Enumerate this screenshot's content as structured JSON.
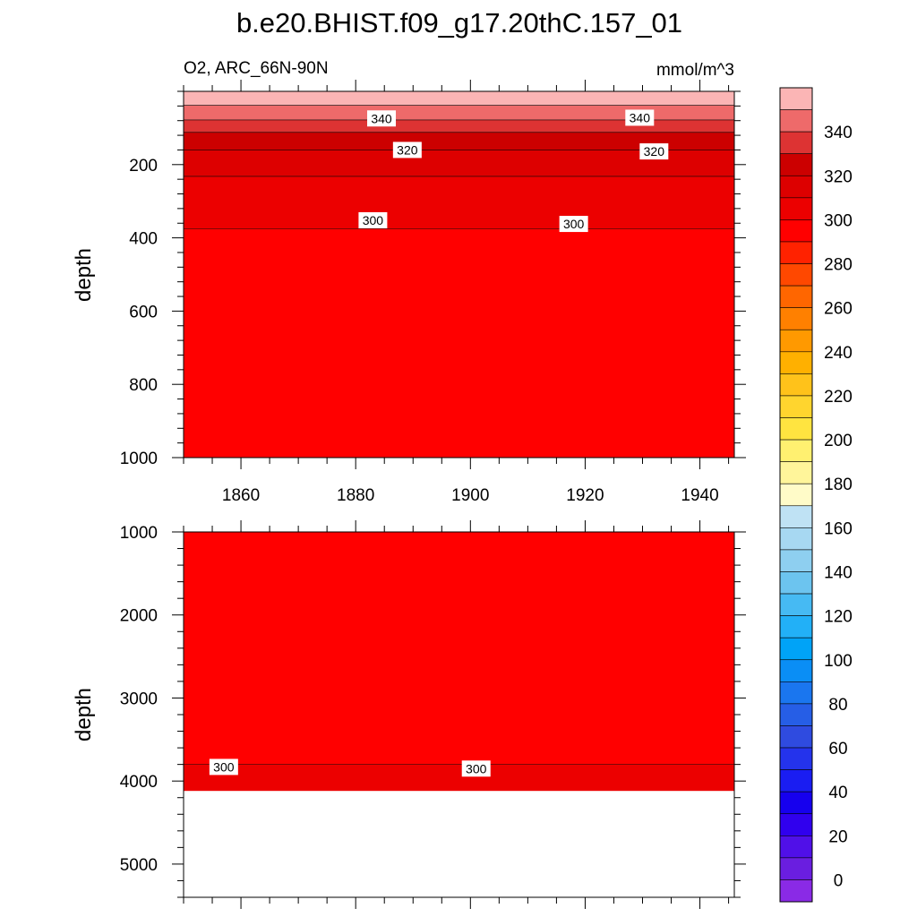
{
  "title": "b.e20.BHIST.f09_g17.20thC.157_01",
  "left_subtitle": "O2, ARC_66N-90N",
  "right_subtitle": "mmol/m^3",
  "chart_data": [
    {
      "type": "heatmap",
      "panel": "upper",
      "variable": "O2",
      "region": "ARC_66N-90N",
      "units": "mmol/m^3",
      "xlabel": "",
      "ylabel": "depth",
      "xlim": [
        1850,
        1946
      ],
      "ylim": [
        1000,
        0
      ],
      "y_reversed": true,
      "xticks": [
        1860,
        1880,
        1900,
        1920,
        1940
      ],
      "yticks": [
        200,
        400,
        600,
        800,
        1000
      ],
      "bands": [
        {
          "upper_depth": 0,
          "lower_depth": 38,
          "color": "#fbb5b5"
        },
        {
          "upper_depth": 38,
          "lower_depth": 78,
          "color": "#ee6a6a"
        },
        {
          "upper_depth": 78,
          "lower_depth": 112,
          "color": "#dd3333"
        },
        {
          "upper_depth": 112,
          "lower_depth": 160,
          "color": "#cc0000"
        },
        {
          "upper_depth": 160,
          "lower_depth": 232,
          "color": "#dd0000"
        },
        {
          "upper_depth": 232,
          "lower_depth": 375,
          "color": "#ec0000"
        },
        {
          "upper_depth": 375,
          "lower_depth": 1000,
          "color": "#ff0000"
        }
      ],
      "contour_labels": [
        {
          "text": "340",
          "x": 1884.5,
          "depth": 74
        },
        {
          "text": "340",
          "x": 1929.5,
          "depth": 72
        },
        {
          "text": "320",
          "x": 1889,
          "depth": 160
        },
        {
          "text": "320",
          "x": 1932,
          "depth": 164
        },
        {
          "text": "300",
          "x": 1883,
          "depth": 352
        },
        {
          "text": "300",
          "x": 1918,
          "depth": 362
        }
      ]
    },
    {
      "type": "heatmap",
      "panel": "lower",
      "variable": "O2",
      "region": "ARC_66N-90N",
      "units": "mmol/m^3",
      "xlabel": "",
      "ylabel": "depth",
      "xlim": [
        1850,
        1946
      ],
      "ylim": [
        5400,
        1000
      ],
      "y_reversed": true,
      "yticks": [
        1000,
        2000,
        3000,
        4000,
        5000
      ],
      "bands": [
        {
          "upper_depth": 1000,
          "lower_depth": 3800,
          "color": "#ff0000"
        },
        {
          "upper_depth": 3800,
          "lower_depth": 4120,
          "color": "#ec0000"
        },
        {
          "upper_depth": 4120,
          "lower_depth": 5400,
          "color": "#ffffff"
        }
      ],
      "contour_labels": [
        {
          "text": "300",
          "x": 1857,
          "depth": 3830
        },
        {
          "text": "300",
          "x": 1901,
          "depth": 3850
        }
      ]
    }
  ],
  "colorbar": {
    "labels": [
      "340",
      "320",
      "300",
      "280",
      "260",
      "240",
      "220",
      "200",
      "180",
      "160",
      "140",
      "120",
      "100",
      "80",
      "60",
      "40",
      "20",
      "0"
    ],
    "colors": [
      "#fbb5b5",
      "#ee6a6a",
      "#dd3333",
      "#cc0000",
      "#dd0000",
      "#ec0000",
      "#ff0000",
      "#ff2200",
      "#ff4800",
      "#ff6600",
      "#ff8000",
      "#ff9900",
      "#ffb000",
      "#ffc21a",
      "#ffd52e",
      "#ffe440",
      "#fff070",
      "#fff59a",
      "#fffbc8",
      "#bfe2f4",
      "#a7d8f2",
      "#8ecff0",
      "#6cc4ef",
      "#46baf3",
      "#22b0f7",
      "#00a3f7",
      "#0a8ef5",
      "#1a76ef",
      "#265ee6",
      "#2f4be0",
      "#2433ec",
      "#1a1df2",
      "#1600ee",
      "#3000ee",
      "#5010e8",
      "#6a1ee0",
      "#8a2ae6"
    ]
  }
}
